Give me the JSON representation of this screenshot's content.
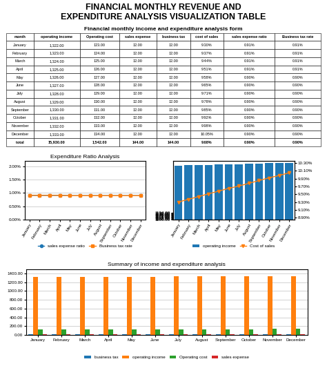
{
  "title": "FINANCIAL MONTHLY REVENUE AND\nEXPENDITURE ANALYSIS VISUALIZATION TABLE",
  "chart_data": [
    {
      "type": "table",
      "title": "Financial monthly income and expenditure analysis form",
      "xlabel": "month",
      "categories": [
        "January",
        "February",
        "March",
        "April",
        "May",
        "June",
        "July",
        "August",
        "September",
        "October",
        "November",
        "December",
        "total"
      ],
      "series": [
        {
          "name": "operating income",
          "values": [
            1322,
            1323,
            1324,
            1325,
            1326,
            1327,
            1328,
            1329,
            1330,
            1331,
            1332,
            1333,
            15930
          ],
          "value_labels": [
            "1,322.00",
            "1,323.00",
            "1,324.00",
            "1,325.00",
            "1,326.00",
            "1,327.00",
            "1,328.00",
            "1,329.00",
            "1,330.00",
            "1,331.00",
            "1,332.00",
            "1,333.00",
            "15,930.00"
          ]
        },
        {
          "name": "Operating cost",
          "values": [
            123,
            124,
            125,
            126,
            127,
            128,
            129,
            130,
            131,
            132,
            133,
            134,
            1542
          ],
          "value_labels": [
            "123.00",
            "124.00",
            "125.00",
            "126.00",
            "127.00",
            "128.00",
            "129.00",
            "130.00",
            "131.00",
            "132.00",
            "133.00",
            "134.00",
            "1,542.00"
          ]
        },
        {
          "name": "sales expense",
          "values": [
            12,
            12,
            12,
            12,
            12,
            12,
            12,
            12,
            12,
            12,
            12,
            12,
            144
          ],
          "value_labels": [
            "12.00",
            "12.00",
            "12.00",
            "12.00",
            "12.00",
            "12.00",
            "12.00",
            "12.00",
            "12.00",
            "12.00",
            "12.00",
            "12.00",
            "144.00"
          ]
        },
        {
          "name": "business tax",
          "values": [
            12,
            12,
            12,
            12,
            12,
            12,
            12,
            12,
            12,
            12,
            12,
            12,
            144
          ],
          "value_labels": [
            "12.00",
            "12.00",
            "12.00",
            "12.00",
            "12.00",
            "12.00",
            "12.00",
            "12.00",
            "12.00",
            "12.00",
            "12.00",
            "12.00",
            "144.00"
          ]
        },
        {
          "name": "cost of sales",
          "values": [
            9.3,
            9.37,
            9.44,
            9.51,
            9.58,
            9.65,
            9.71,
            9.78,
            9.85,
            9.92,
            9.98,
            10.05,
            9.68
          ],
          "value_labels": [
            "9.30%",
            "9.37%",
            "9.44%",
            "9.51%",
            "9.58%",
            "9.65%",
            "9.71%",
            "9.78%",
            "9.85%",
            "9.92%",
            "9.98%",
            "10.05%",
            "9.68%"
          ]
        },
        {
          "name": "sales expense ratio",
          "values": [
            0.91,
            0.91,
            0.91,
            0.91,
            0.9,
            0.9,
            0.9,
            0.9,
            0.9,
            0.9,
            0.9,
            0.9,
            0.9
          ],
          "value_labels": [
            "0.91%",
            "0.91%",
            "0.91%",
            "0.91%",
            "0.90%",
            "0.90%",
            "0.90%",
            "0.90%",
            "0.90%",
            "0.90%",
            "0.90%",
            "0.90%",
            "0.90%"
          ]
        },
        {
          "name": "Business tax rate",
          "values": [
            0.91,
            0.91,
            0.91,
            0.91,
            0.9,
            0.9,
            0.9,
            0.9,
            0.9,
            0.9,
            0.9,
            0.9,
            0.9
          ],
          "value_labels": [
            "0.91%",
            "0.91%",
            "0.91%",
            "0.91%",
            "0.90%",
            "0.90%",
            "0.90%",
            "0.90%",
            "0.90%",
            "0.90%",
            "0.90%",
            "0.90%",
            "0.90%"
          ]
        }
      ]
    },
    {
      "type": "line",
      "title": "Expenditure Ratio Analysis",
      "categories": [
        "January",
        "February",
        "March",
        "April",
        "May",
        "June",
        "July",
        "August",
        "September",
        "October",
        "November",
        "December"
      ],
      "series": [
        {
          "name": "sales expense ratio",
          "marker": "circle",
          "values": [
            0.91,
            0.91,
            0.91,
            0.91,
            0.9,
            0.9,
            0.9,
            0.9,
            0.9,
            0.9,
            0.9,
            0.9
          ]
        },
        {
          "name": "Business tax rate",
          "marker": "square",
          "values": [
            0.91,
            0.91,
            0.91,
            0.91,
            0.9,
            0.9,
            0.9,
            0.9,
            0.9,
            0.9,
            0.9,
            0.9
          ]
        }
      ],
      "ylim": [
        0.0,
        2.2
      ],
      "yticks": [
        {
          "value": 0.0,
          "label": "0.00%"
        },
        {
          "value": 0.5,
          "label": "0.50%"
        },
        {
          "value": 1.0,
          "label": "1.00%"
        },
        {
          "value": 1.5,
          "label": "1.50%"
        },
        {
          "value": 2.0,
          "label": "2.00%"
        }
      ],
      "grid": "y",
      "legend": "lower center"
    },
    {
      "type": "bar",
      "categories": [
        "January",
        "February",
        "March",
        "April",
        "May",
        "June",
        "July",
        "August",
        "September",
        "October",
        "November",
        "December"
      ],
      "series": [
        {
          "name": "operating income",
          "type": "bar",
          "values": [
            1322,
            1323,
            1324,
            1325,
            1326,
            1327,
            1328,
            1329,
            1330,
            1331,
            1332,
            1333
          ]
        },
        {
          "name": "Cost of sales",
          "type": "line",
          "axis": "y2",
          "marker": "triangle_down",
          "values": [
            9.3,
            9.37,
            9.44,
            9.51,
            9.58,
            9.65,
            9.71,
            9.78,
            9.85,
            9.92,
            9.98,
            10.05
          ]
        }
      ],
      "ylim": [
        1106,
        1340
      ],
      "yticks": [
        {
          "value": 1106,
          "label": "1106.00"
        },
        {
          "value": 1108,
          "label": "1108.00"
        },
        {
          "value": 1110,
          "label": "1110.00"
        },
        {
          "value": 1112,
          "label": "1112.00"
        },
        {
          "value": 1114,
          "label": "1114.00"
        },
        {
          "value": 1116,
          "label": "1116.00"
        },
        {
          "value": 1118,
          "label": "1118.00"
        },
        {
          "value": 1120,
          "label": "1120.00"
        },
        {
          "value": 1122,
          "label": "1122.00"
        },
        {
          "value": 1124,
          "label": "1124.00"
        },
        {
          "value": 1126,
          "label": "1126.00"
        },
        {
          "value": 1128,
          "label": "1128.00"
        },
        {
          "value": 1130,
          "label": "1130.00"
        },
        {
          "value": 1132,
          "label": "1132.00"
        },
        {
          "value": 1134,
          "label": "1134.00"
        }
      ],
      "y2lim": [
        8.85,
        10.35
      ],
      "y2ticks": [
        {
          "value": 8.9,
          "label": "8.90%"
        },
        {
          "value": 9.1,
          "label": "9.10%"
        },
        {
          "value": 9.3,
          "label": "9.30%"
        },
        {
          "value": 9.5,
          "label": "9.50%"
        },
        {
          "value": 9.7,
          "label": "9.70%"
        },
        {
          "value": 9.9,
          "label": "9.90%"
        },
        {
          "value": 10.1,
          "label": "10.10%"
        },
        {
          "value": 10.3,
          "label": "10.30%"
        }
      ],
      "grid": false,
      "legend": "lower center"
    },
    {
      "type": "bar",
      "title": "Summary of income and expenditure analysis",
      "categories": [
        "January",
        "February",
        "March",
        "April",
        "May",
        "June",
        "July",
        "August",
        "September",
        "October",
        "November",
        "December"
      ],
      "series": [
        {
          "name": "business tax",
          "values": [
            12,
            12,
            12,
            12,
            12,
            12,
            12,
            12,
            12,
            12,
            12,
            12
          ]
        },
        {
          "name": "operating income",
          "values": [
            1322,
            1323,
            1324,
            1325,
            1326,
            1327,
            1328,
            1329,
            1330,
            1331,
            1332,
            1333
          ]
        },
        {
          "name": "Operating cost",
          "values": [
            123,
            124,
            125,
            126,
            127,
            128,
            129,
            130,
            131,
            132,
            133,
            134
          ]
        },
        {
          "name": "sales expense",
          "values": [
            12,
            12,
            12,
            12,
            12,
            12,
            12,
            12,
            12,
            12,
            12,
            12
          ]
        }
      ],
      "ylim": [
        0,
        1500
      ],
      "yticks": [
        {
          "value": 0,
          "label": "0.00"
        },
        {
          "value": 200,
          "label": "200.00"
        },
        {
          "value": 400,
          "label": "400.00"
        },
        {
          "value": 600,
          "label": "600.00"
        },
        {
          "value": 800,
          "label": "800.00"
        },
        {
          "value": 1000,
          "label": "1000.00"
        },
        {
          "value": 1200,
          "label": "1200.00"
        },
        {
          "value": 1400,
          "label": "1400.00"
        }
      ],
      "grid": "y",
      "legend": "lower center"
    }
  ]
}
